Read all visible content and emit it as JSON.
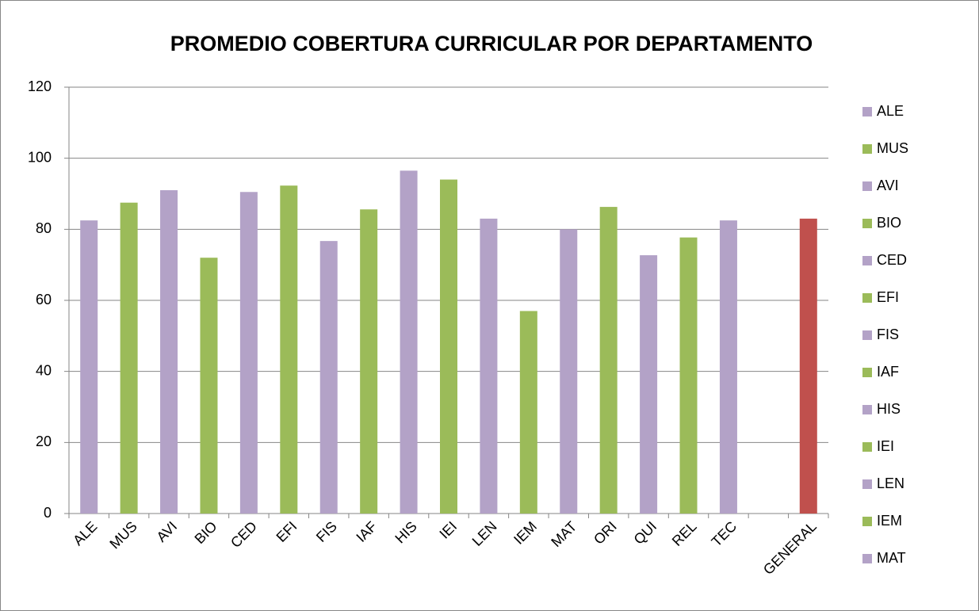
{
  "chart_data": {
    "type": "bar",
    "title": "PROMEDIO COBERTURA CURRICULAR POR DEPARTAMENTO",
    "categories": [
      "ALE",
      "MUS",
      "AVI",
      "BIO",
      "CED",
      "EFI",
      "FIS",
      "IAF",
      "HIS",
      "IEI",
      "LEN",
      "IEM",
      "MAT",
      "ORI",
      "QUI",
      "REL",
      "TEC",
      null,
      "GENERAL"
    ],
    "values": [
      82.5,
      87.5,
      91,
      72,
      90.5,
      92.3,
      76.7,
      85.6,
      96.5,
      94,
      83,
      57,
      80,
      86.3,
      72.7,
      77.7,
      82.5,
      null,
      83
    ],
    "colors": [
      "#b3a2c7",
      "#9bbb59",
      "#b3a2c7",
      "#9bbb59",
      "#b3a2c7",
      "#9bbb59",
      "#b3a2c7",
      "#9bbb59",
      "#b3a2c7",
      "#9bbb59",
      "#b3a2c7",
      "#9bbb59",
      "#b3a2c7",
      "#9bbb59",
      "#b3a2c7",
      "#9bbb59",
      "#b3a2c7",
      null,
      "#c0504d"
    ],
    "legend": [
      {
        "name": "ALE",
        "color": "#b3a2c7"
      },
      {
        "name": "MUS",
        "color": "#9bbb59"
      },
      {
        "name": "AVI",
        "color": "#b3a2c7"
      },
      {
        "name": "BIO",
        "color": "#9bbb59"
      },
      {
        "name": "CED",
        "color": "#b3a2c7"
      },
      {
        "name": "EFI",
        "color": "#9bbb59"
      },
      {
        "name": "FIS",
        "color": "#b3a2c7"
      },
      {
        "name": "IAF",
        "color": "#9bbb59"
      },
      {
        "name": "HIS",
        "color": "#b3a2c7"
      },
      {
        "name": "IEI",
        "color": "#9bbb59"
      },
      {
        "name": "LEN",
        "color": "#b3a2c7"
      },
      {
        "name": "IEM",
        "color": "#9bbb59"
      },
      {
        "name": "MAT",
        "color": "#b3a2c7"
      }
    ],
    "ylim": [
      0,
      120
    ],
    "yticks": [
      0,
      20,
      40,
      60,
      80,
      100,
      120
    ],
    "grid": true
  }
}
